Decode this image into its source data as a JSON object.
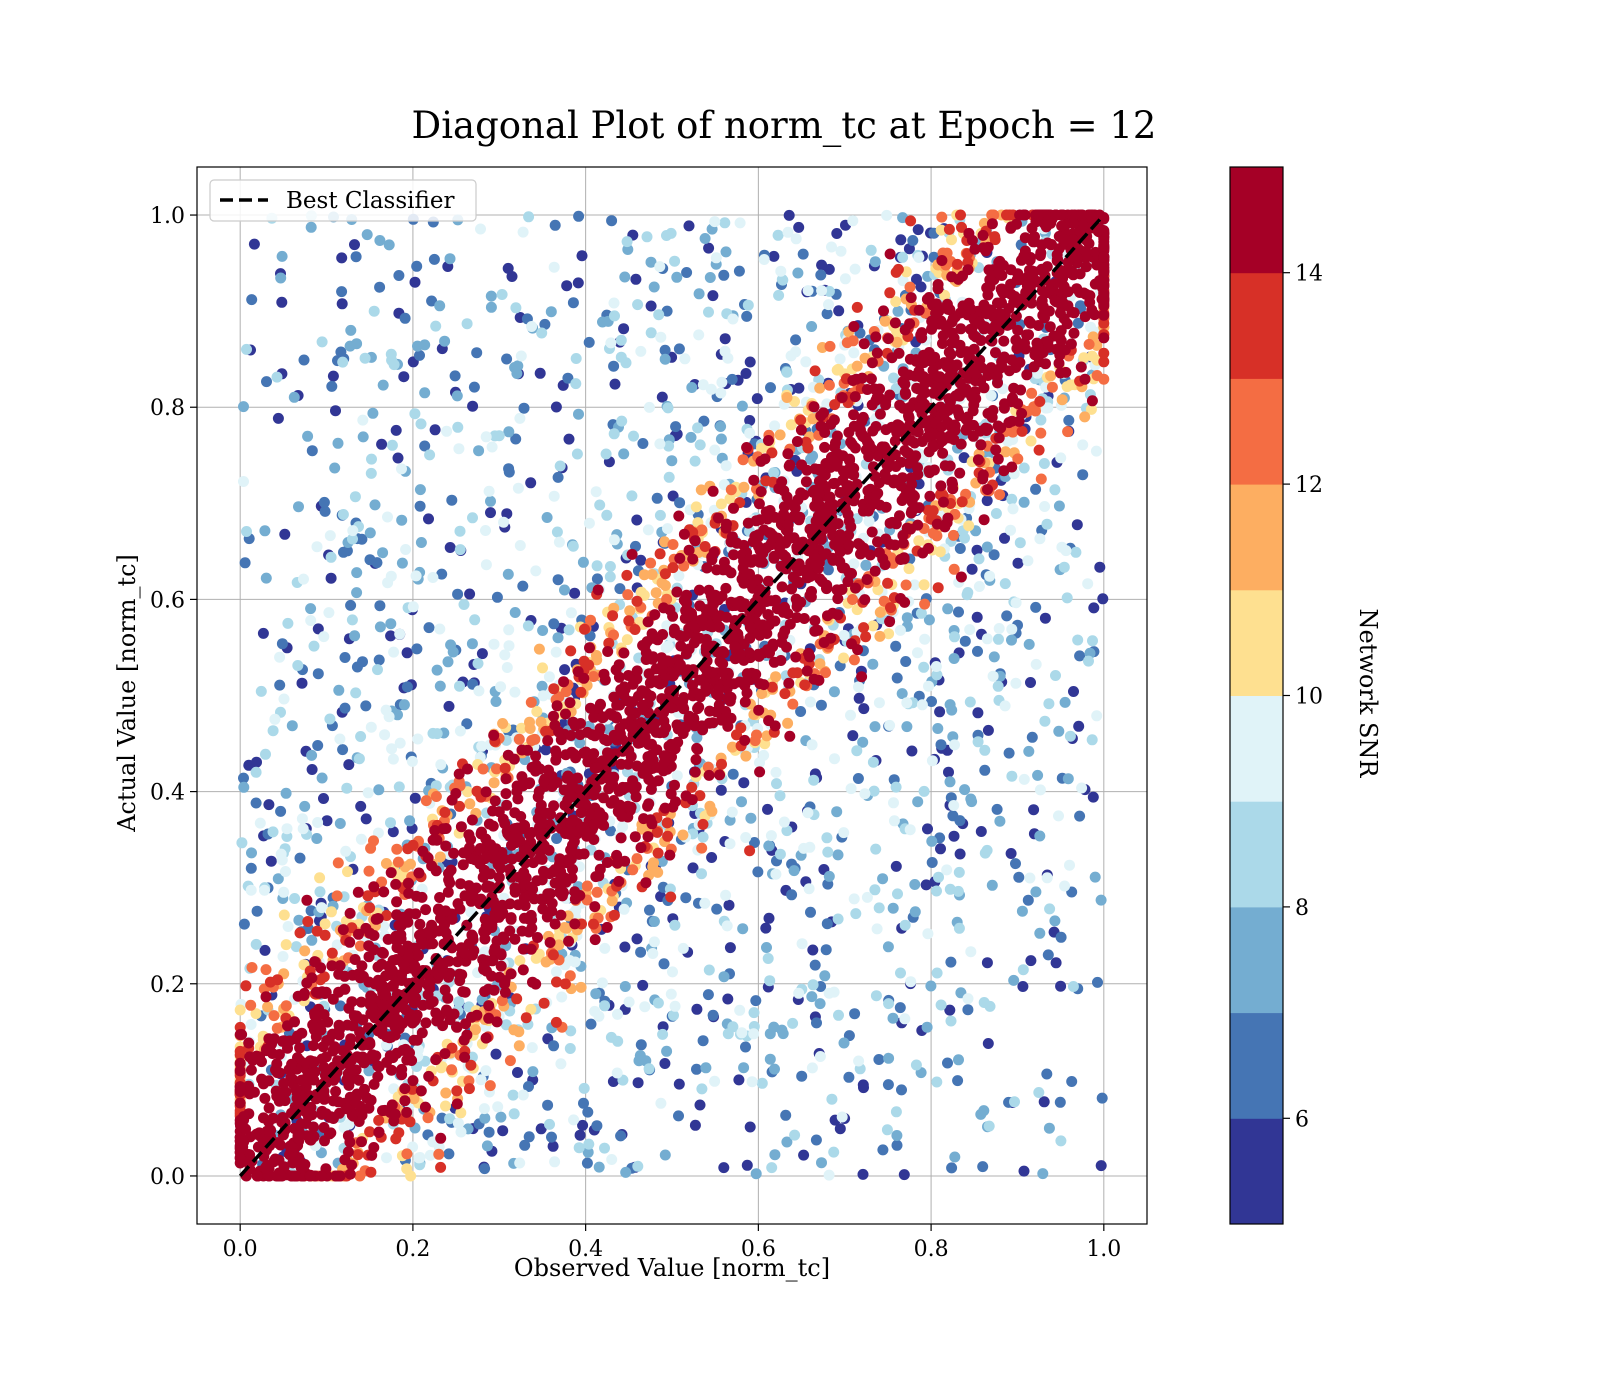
{
  "chart_data": {
    "type": "scatter",
    "title": "Diagonal Plot of norm_tc at Epoch = 12",
    "xlabel": "Observed Value [norm_tc]",
    "ylabel": "Actual Value [norm_tc]",
    "xlim": [
      -0.05,
      1.05
    ],
    "ylim": [
      -0.05,
      1.05
    ],
    "x_ticks": [
      "0.0",
      "0.2",
      "0.4",
      "0.6",
      "0.8",
      "1.0"
    ],
    "y_ticks": [
      "0.0",
      "0.2",
      "0.4",
      "0.6",
      "0.8",
      "1.0"
    ],
    "grid": true,
    "legend": {
      "placement": "top-left",
      "entries": [
        "Best Classifier"
      ]
    },
    "reference_line": {
      "name": "Best Classifier",
      "style": "dashed",
      "color": "#000000",
      "from": [
        0,
        0
      ],
      "to": [
        1,
        1
      ]
    },
    "colorbar": {
      "label": "Network SNR",
      "range": [
        5,
        15
      ],
      "ticks": [
        "6",
        "8",
        "10",
        "12",
        "14"
      ],
      "tick_values": [
        6,
        8,
        10,
        12,
        14
      ],
      "levels": [
        5,
        6,
        7,
        8,
        9,
        10,
        11,
        12,
        13,
        14,
        15
      ],
      "colors": [
        "#313695",
        "#4575b4",
        "#74add1",
        "#abd9e9",
        "#e0f3f8",
        "#fee090",
        "#fdae61",
        "#f46d43",
        "#d73027",
        "#a50026"
      ]
    },
    "distribution": {
      "description_values": "x and y in [0,1]; high-SNR points lie along y = x, low-SNR points spread widely",
      "core_band_halfwidth_at_snr15": 0.08
    }
  }
}
